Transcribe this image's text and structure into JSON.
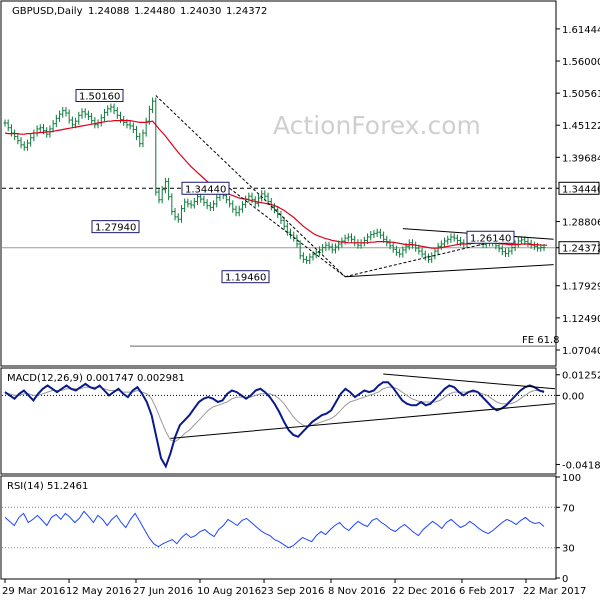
{
  "chart_data": {
    "type": "line",
    "header": {
      "symbol": "GBPUSD,Daily",
      "ohlc": [
        "1.24088",
        "1.24480",
        "1.24030",
        "1.24372"
      ]
    },
    "watermark": "ActionForex.com",
    "price_panel": {
      "series_type": "ohlc",
      "ylim": [
        1.045,
        1.66
      ],
      "ticks": [
        "1.61444",
        "1.56000",
        "1.50561",
        "1.45122",
        "1.39684",
        "1.34440",
        "1.28806",
        "1.24372",
        "1.17929",
        "1.12490",
        "1.07040"
      ],
      "tick_values": [
        1.61444,
        1.56,
        1.50561,
        1.45122,
        1.39684,
        1.3444,
        1.28806,
        1.24372,
        1.17929,
        1.1249,
        1.0704
      ],
      "boxed_ticks": [
        "1.34440",
        "1.24372"
      ],
      "annotations": [
        {
          "label": "1.50160",
          "value": 1.5016
        },
        {
          "label": "1.34440",
          "value": 1.3444
        },
        {
          "label": "1.27940",
          "value": 1.2794
        },
        {
          "label": "1.19460",
          "value": 1.1946
        },
        {
          "label": "1.26140",
          "value": 1.2614
        }
      ],
      "fib_label": "FE 61.8",
      "fib_value": 1.077,
      "close_series": [
        1.455,
        1.447,
        1.438,
        1.432,
        1.425,
        1.418,
        1.414,
        1.421,
        1.43,
        1.438,
        1.445,
        1.447,
        1.442,
        1.436,
        1.445,
        1.454,
        1.463,
        1.47,
        1.476,
        1.472,
        1.46,
        1.452,
        1.458,
        1.468,
        1.474,
        1.47,
        1.466,
        1.459,
        1.452,
        1.455,
        1.464,
        1.473,
        1.479,
        1.482,
        1.476,
        1.468,
        1.461,
        1.456,
        1.452,
        1.45,
        1.444,
        1.432,
        1.42,
        1.438,
        1.458,
        1.478,
        1.492,
        1.338,
        1.325,
        1.342,
        1.356,
        1.33,
        1.305,
        1.296,
        1.292,
        1.31,
        1.321,
        1.318,
        1.316,
        1.322,
        1.33,
        1.326,
        1.32,
        1.315,
        1.312,
        1.318,
        1.329,
        1.338,
        1.332,
        1.325,
        1.318,
        1.309,
        1.303,
        1.309,
        1.317,
        1.326,
        1.331,
        1.325,
        1.319,
        1.328,
        1.335,
        1.331,
        1.322,
        1.313,
        1.308,
        1.3,
        1.29,
        1.28,
        1.27,
        1.265,
        1.26,
        1.25,
        1.23,
        1.224,
        1.222,
        1.228,
        1.232,
        1.236,
        1.24,
        1.244,
        1.248,
        1.245,
        1.24,
        1.245,
        1.25,
        1.255,
        1.26,
        1.262,
        1.258,
        1.252,
        1.248,
        1.252,
        1.256,
        1.262,
        1.266,
        1.268,
        1.27,
        1.265,
        1.258,
        1.252,
        1.247,
        1.241,
        1.236,
        1.233,
        1.24,
        1.246,
        1.252,
        1.248,
        1.243,
        1.238,
        1.233,
        1.228,
        1.224,
        1.23,
        1.238,
        1.246,
        1.25,
        1.255,
        1.258,
        1.262,
        1.26,
        1.256,
        1.252,
        1.25,
        1.254,
        1.258,
        1.262,
        1.258,
        1.253,
        1.249,
        1.252,
        1.256,
        1.252,
        1.247,
        1.242,
        1.237,
        1.234,
        1.238,
        1.244,
        1.25,
        1.255,
        1.257,
        1.254,
        1.251,
        1.248,
        1.246,
        1.243,
        1.244,
        1.244
      ],
      "ma_series": [
        1.438,
        1.437,
        1.437,
        1.437,
        1.437,
        1.436,
        1.436,
        1.437,
        1.437,
        1.438,
        1.438,
        1.439,
        1.439,
        1.44,
        1.44,
        1.441,
        1.442,
        1.443,
        1.444,
        1.445,
        1.446,
        1.447,
        1.448,
        1.449,
        1.45,
        1.451,
        1.452,
        1.453,
        1.454,
        1.455,
        1.456,
        1.457,
        1.458,
        1.458,
        1.459,
        1.459,
        1.459,
        1.459,
        1.459,
        1.459,
        1.458,
        1.457,
        1.456,
        1.456,
        1.456,
        1.457,
        1.458,
        1.452,
        1.445,
        1.439,
        1.433,
        1.426,
        1.419,
        1.412,
        1.405,
        1.399,
        1.393,
        1.387,
        1.381,
        1.376,
        1.371,
        1.366,
        1.361,
        1.356,
        1.352,
        1.348,
        1.345,
        1.342,
        1.339,
        1.337,
        1.334,
        1.332,
        1.33,
        1.328,
        1.327,
        1.326,
        1.325,
        1.323,
        1.322,
        1.321,
        1.32,
        1.319,
        1.318,
        1.317,
        1.315,
        1.313,
        1.31,
        1.307,
        1.303,
        1.299,
        1.295,
        1.29,
        1.285,
        1.28,
        1.276,
        1.272,
        1.268,
        1.265,
        1.263,
        1.261,
        1.259,
        1.258,
        1.256,
        1.255,
        1.254,
        1.253,
        1.253,
        1.252,
        1.252,
        1.252,
        1.252,
        1.252,
        1.252,
        1.252,
        1.253,
        1.253,
        1.254,
        1.254,
        1.254,
        1.254,
        1.253,
        1.253,
        1.252,
        1.251,
        1.25,
        1.249,
        1.249,
        1.249,
        1.248,
        1.247,
        1.246,
        1.245,
        1.244,
        1.243,
        1.243,
        1.243,
        1.244,
        1.245,
        1.246,
        1.247,
        1.248,
        1.249,
        1.25,
        1.25,
        1.25,
        1.251,
        1.251,
        1.252,
        1.252,
        1.252,
        1.252,
        1.252,
        1.252,
        1.251,
        1.251,
        1.25,
        1.25,
        1.249,
        1.249,
        1.249,
        1.249,
        1.25,
        1.25,
        1.25,
        1.249,
        1.249,
        1.249,
        1.248,
        1.248,
        1.248
      ]
    },
    "macd_panel": {
      "title": "MACD(12,26,9) 0.001747 0.002981",
      "ylim": [
        -0.047,
        0.016
      ],
      "ticks": [
        "0.012522",
        "0.00",
        "-0.041823"
      ],
      "tick_values": [
        0.012522,
        0.0,
        -0.041823
      ],
      "macd_series": [
        0.002,
        0.0,
        -0.002,
        0.001,
        0.003,
        0.0,
        -0.003,
        0.001,
        0.004,
        0.006,
        0.004,
        0.002,
        0.004,
        0.006,
        0.004,
        0.003,
        0.005,
        0.007,
        0.005,
        0.004,
        0.006,
        0.003,
        0.0,
        0.002,
        0.004,
        0.001,
        -0.001,
        0.003,
        0.005,
        0.001,
        -0.004,
        -0.012,
        -0.025,
        -0.038,
        -0.043,
        -0.035,
        -0.025,
        -0.018,
        -0.015,
        -0.012,
        -0.008,
        -0.004,
        -0.002,
        -0.001,
        -0.002,
        -0.004,
        -0.003,
        0.001,
        0.003,
        0.002,
        0.0,
        -0.002,
        0.0,
        0.003,
        0.004,
        0.002,
        -0.001,
        -0.005,
        -0.01,
        -0.016,
        -0.021,
        -0.024,
        -0.025,
        -0.022,
        -0.019,
        -0.016,
        -0.014,
        -0.012,
        -0.011,
        -0.009,
        -0.004,
        0.001,
        0.004,
        0.002,
        -0.001,
        0.001,
        0.003,
        0.002,
        0.003,
        0.006,
        0.008,
        0.008,
        0.005,
        0.001,
        -0.003,
        -0.005,
        -0.006,
        -0.006,
        -0.004,
        -0.006,
        -0.005,
        -0.002,
        0.001,
        0.004,
        0.006,
        0.005,
        0.002,
        0.0,
        0.002,
        0.003,
        0.002,
        -0.001,
        -0.004,
        -0.007,
        -0.009,
        -0.008,
        -0.006,
        -0.003,
        0.0,
        0.003,
        0.005,
        0.006,
        0.005,
        0.003,
        0.002
      ],
      "signal_series": [
        0.001,
        0.001,
        0.0,
        0.0,
        0.001,
        0.001,
        0.0,
        0.0,
        0.001,
        0.002,
        0.003,
        0.003,
        0.003,
        0.004,
        0.004,
        0.004,
        0.004,
        0.005,
        0.005,
        0.005,
        0.005,
        0.004,
        0.003,
        0.003,
        0.003,
        0.002,
        0.002,
        0.002,
        0.003,
        0.002,
        0.001,
        -0.002,
        -0.008,
        -0.015,
        -0.022,
        -0.027,
        -0.028,
        -0.026,
        -0.023,
        -0.021,
        -0.018,
        -0.015,
        -0.012,
        -0.009,
        -0.007,
        -0.006,
        -0.005,
        -0.004,
        -0.002,
        -0.001,
        -0.001,
        -0.001,
        -0.001,
        0.0,
        0.001,
        0.001,
        0.001,
        0.0,
        -0.002,
        -0.005,
        -0.009,
        -0.013,
        -0.016,
        -0.018,
        -0.019,
        -0.018,
        -0.017,
        -0.016,
        -0.015,
        -0.014,
        -0.012,
        -0.009,
        -0.006,
        -0.004,
        -0.003,
        -0.002,
        -0.001,
        0.0,
        0.001,
        0.002,
        0.004,
        0.005,
        0.005,
        0.004,
        0.002,
        0.0,
        -0.002,
        -0.003,
        -0.004,
        -0.004,
        -0.004,
        -0.004,
        -0.003,
        -0.001,
        0.001,
        0.002,
        0.002,
        0.002,
        0.002,
        0.002,
        0.002,
        0.001,
        0.0,
        -0.002,
        -0.004,
        -0.005,
        -0.005,
        -0.005,
        -0.004,
        -0.002,
        0.0,
        0.002,
        0.003,
        0.003,
        0.003
      ]
    },
    "rsi_panel": {
      "title": "RSI(14) 51.2461",
      "ylim": [
        0,
        100
      ],
      "ticks": [
        "100",
        "70",
        "30",
        "0"
      ],
      "tick_values": [
        100,
        70,
        30,
        0
      ],
      "rsi_series": [
        60,
        56,
        52,
        60,
        64,
        55,
        58,
        62,
        57,
        52,
        60,
        63,
        58,
        64,
        60,
        55,
        59,
        66,
        61,
        55,
        62,
        58,
        52,
        58,
        62,
        55,
        50,
        58,
        64,
        56,
        48,
        40,
        34,
        31,
        34,
        36,
        38,
        34,
        40,
        44,
        40,
        42,
        46,
        48,
        44,
        41,
        48,
        52,
        58,
        55,
        52,
        57,
        59,
        55,
        51,
        47,
        44,
        42,
        38,
        36,
        33,
        30,
        32,
        36,
        40,
        38,
        36,
        42,
        46,
        43,
        48,
        52,
        55,
        50,
        47,
        52,
        56,
        53,
        51,
        57,
        59,
        55,
        52,
        48,
        46,
        50,
        53,
        49,
        45,
        42,
        48,
        52,
        56,
        53,
        49,
        55,
        58,
        54,
        50,
        52,
        56,
        53,
        49,
        46,
        44,
        47,
        51,
        55,
        58,
        56,
        53,
        57,
        60,
        56,
        54,
        55,
        51
      ]
    },
    "x_axis": {
      "tick_labels": [
        "29 Mar 2016",
        "12 May 2016",
        "27 Jun 2016",
        "10 Aug 2016",
        "23 Sep 2016",
        "8 Nov 2016",
        "22 Dec 2016",
        "6 Feb 2017",
        "22 Mar 2017"
      ],
      "tick_dates": [
        "2016-03-29",
        "2016-05-12",
        "2016-06-27",
        "2016-08-10",
        "2016-09-23",
        "2016-11-08",
        "2016-12-22",
        "2017-02-06",
        "2017-03-22"
      ]
    },
    "colors": {
      "price": "#0c7a3a",
      "ma": "#e0001b",
      "macd": "#0a1a8c",
      "signal": "#9a9a9a",
      "rsi": "#1e46ff",
      "trend": "#000000",
      "grid_dashed": "#000000"
    }
  }
}
